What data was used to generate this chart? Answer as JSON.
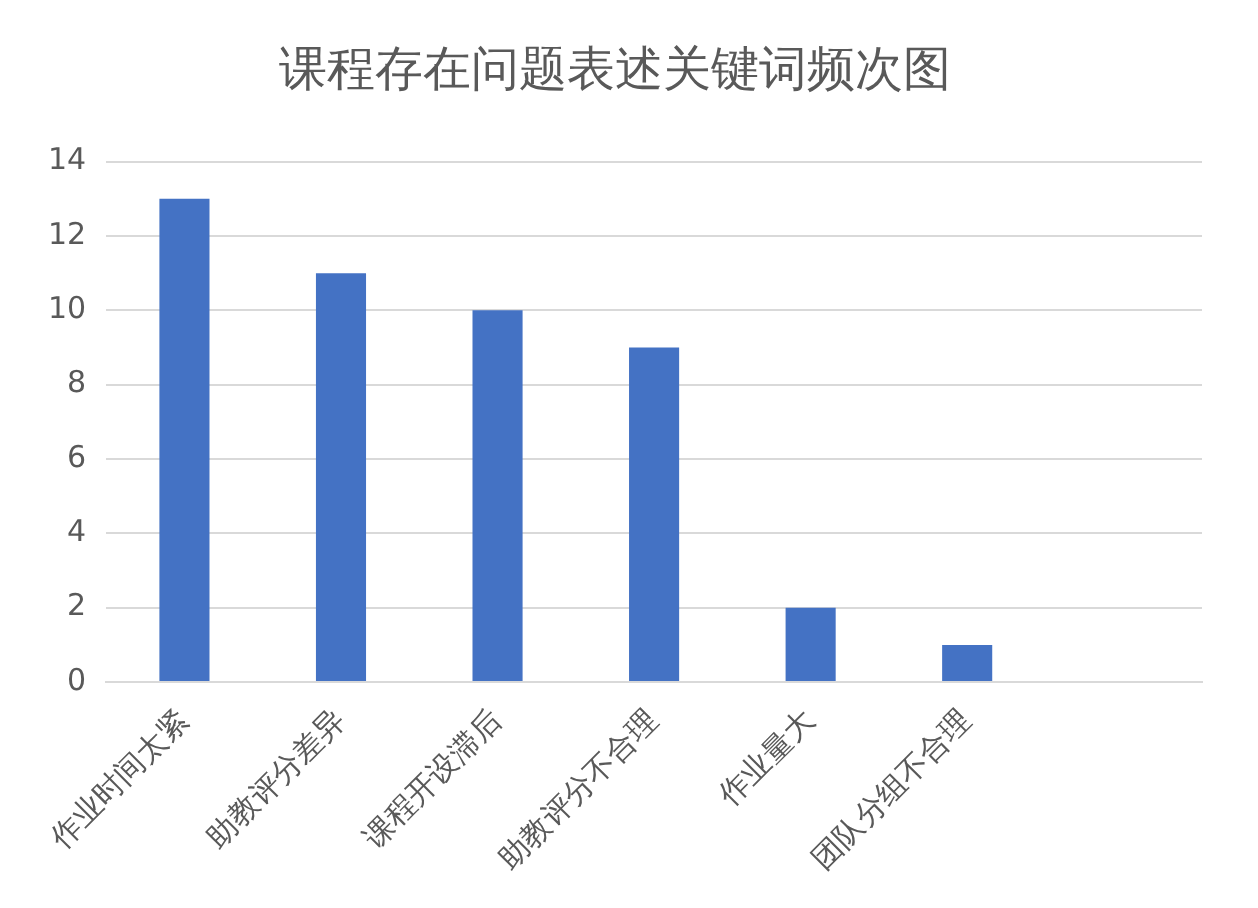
{
  "chart_data": {
    "type": "bar",
    "title": "课程存在问题表述关键词频次图",
    "categories": [
      "作业时间太紧",
      "助教评分差异",
      "课程开设滞后",
      "助教评分不合理",
      "作业量大",
      "团队分组不合理",
      null
    ],
    "values": [
      13,
      11,
      10,
      9,
      2,
      1,
      null
    ],
    "color": "#4472c4",
    "ylim": [
      0,
      14
    ],
    "yticks": [
      0,
      2,
      4,
      6,
      8,
      10,
      12,
      14
    ],
    "grid": "y",
    "legend": false
  }
}
